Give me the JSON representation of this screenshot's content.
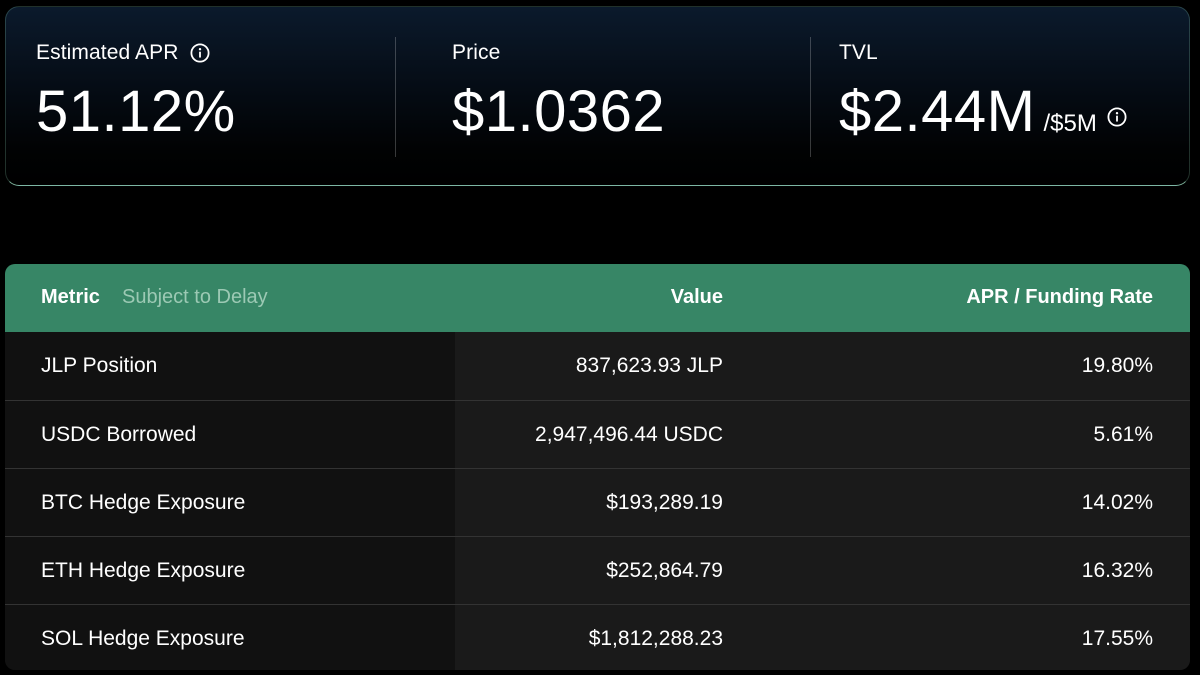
{
  "stats": {
    "apr": {
      "label": "Estimated APR",
      "value": "51.12%",
      "icon": "info-icon"
    },
    "price": {
      "label": "Price",
      "value": "$1.0362"
    },
    "tvl": {
      "label": "TVL",
      "value": "$2.44M",
      "cap": "/$5M",
      "icon": "info-icon"
    }
  },
  "table": {
    "headers": {
      "metric": "Metric",
      "subtitle": "Subject to Delay",
      "value": "Value",
      "rate": "APR / Funding Rate"
    },
    "rows": [
      {
        "metric": "JLP Position",
        "value": "837,623.93 JLP",
        "rate": "19.80%"
      },
      {
        "metric": "USDC Borrowed",
        "value": "2,947,496.44 USDC",
        "rate": "5.61%"
      },
      {
        "metric": "BTC Hedge Exposure",
        "value": "$193,289.19",
        "rate": "14.02%"
      },
      {
        "metric": "ETH Hedge Exposure",
        "value": "$252,864.79",
        "rate": "16.32%"
      },
      {
        "metric": "SOL Hedge Exposure",
        "value": "$1,812,288.23",
        "rate": "17.55%"
      }
    ]
  },
  "colors": {
    "header_bg": "#378666",
    "header_subtitle": "#9cc9b4",
    "card_border_accent": "#a5ebcd",
    "row_left_bg": "#111111",
    "row_right_bg": "#1a1a1a",
    "row_divider": "#333333"
  }
}
